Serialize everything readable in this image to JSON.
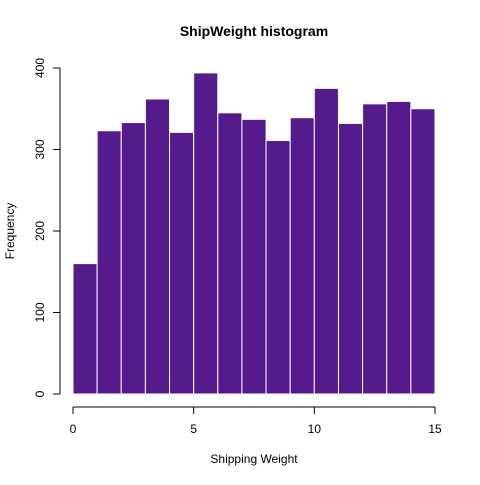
{
  "chart_data": {
    "type": "bar",
    "title": "ShipWeight histogram",
    "xlabel": "Shipping Weight",
    "ylabel": "Frequency",
    "bin_edges": [
      0,
      1,
      2,
      3,
      4,
      5,
      6,
      7,
      8,
      9,
      10,
      11,
      12,
      13,
      14,
      15
    ],
    "values": [
      160,
      323,
      333,
      362,
      321,
      394,
      345,
      337,
      311,
      339,
      375,
      332,
      356,
      359,
      350
    ],
    "xlim": [
      0,
      15
    ],
    "ylim": [
      0,
      400
    ],
    "x_ticks": [
      0,
      5,
      10,
      15
    ],
    "y_ticks": [
      0,
      100,
      200,
      300,
      400
    ],
    "bar_color": "#551a8b",
    "bar_border_color": "#ffffff",
    "grid": false,
    "legend": "none"
  }
}
